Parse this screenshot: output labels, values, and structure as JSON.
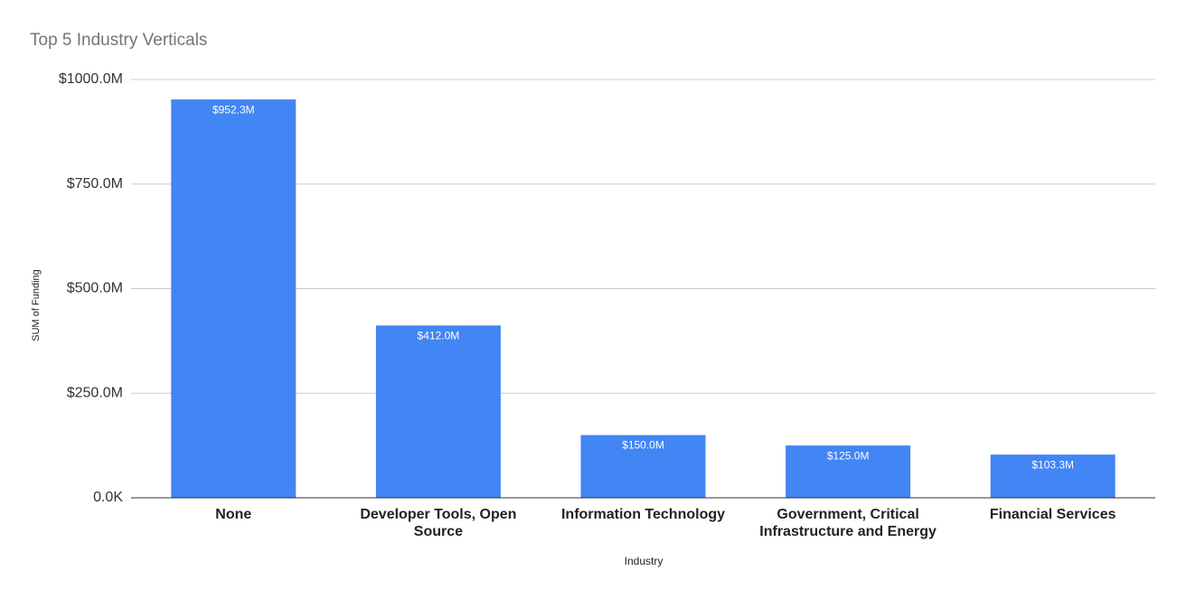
{
  "chart_data": {
    "type": "bar",
    "title": "Top 5 Industry Verticals",
    "x_label": "Industry",
    "y_label": "SUM of Funding",
    "categories": [
      "None",
      "Developer Tools, Open Source",
      "Information Technology",
      "Government, Critical Infrastructure and Energy",
      "Financial Services"
    ],
    "values": [
      952.3,
      412.0,
      150.0,
      125.0,
      103.3
    ],
    "value_labels": [
      "$952.3M",
      "$412.0M",
      "$150.0M",
      "$125.0M",
      "$103.3M"
    ],
    "color": "#4285f4",
    "ylim": [
      0,
      1000
    ],
    "yticks": [
      {
        "value": 0,
        "label": "0.0K"
      },
      {
        "value": 250,
        "label": "$250.0M"
      },
      {
        "value": 500,
        "label": "$500.0M"
      },
      {
        "value": 750,
        "label": "$750.0M"
      },
      {
        "value": 1000,
        "label": "$1000.0M"
      }
    ],
    "grid": true
  }
}
